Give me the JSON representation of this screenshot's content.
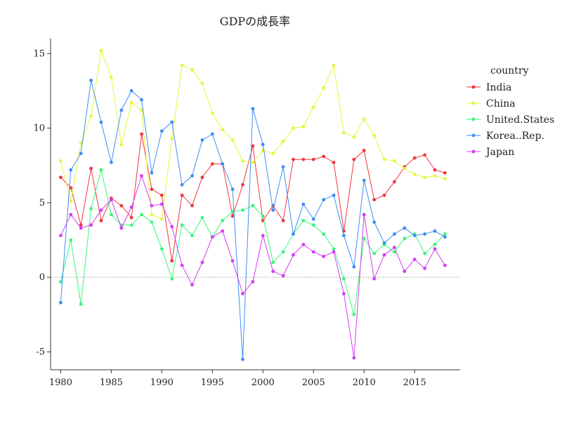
{
  "chart_data": {
    "type": "line",
    "title": "GDPの成長率",
    "xlabel": "",
    "ylabel": "",
    "xlim": [
      1979,
      2019.5
    ],
    "ylim": [
      -6.2,
      16
    ],
    "x_ticks": [
      1980,
      1985,
      1990,
      1995,
      2000,
      2005,
      2010,
      2015
    ],
    "y_ticks": [
      -5,
      0,
      5,
      10,
      15
    ],
    "y_tick_labels": [
      "-5",
      "0",
      "5",
      "10",
      "15"
    ],
    "zero_line": true,
    "grid": false,
    "legend_title": "country",
    "legend_position": "right",
    "x": [
      1980,
      1981,
      1982,
      1983,
      1984,
      1985,
      1986,
      1987,
      1988,
      1989,
      1990,
      1991,
      1992,
      1993,
      1994,
      1995,
      1996,
      1997,
      1998,
      1999,
      2000,
      2001,
      2002,
      2003,
      2004,
      2005,
      2006,
      2007,
      2008,
      2009,
      2010,
      2011,
      2012,
      2013,
      2014,
      2015,
      2016,
      2017,
      2018
    ],
    "series": [
      {
        "name": "India",
        "color": "#f0363f",
        "values": [
          6.7,
          6.0,
          3.5,
          7.3,
          3.8,
          5.3,
          4.8,
          4.0,
          9.6,
          5.9,
          5.5,
          1.1,
          5.5,
          4.8,
          6.7,
          7.6,
          7.6,
          4.1,
          6.2,
          8.8,
          3.8,
          4.8,
          3.8,
          7.9,
          7.9,
          7.9,
          8.1,
          7.7,
          3.1,
          7.9,
          8.5,
          5.2,
          5.5,
          6.4,
          7.4,
          8.0,
          8.2,
          7.2,
          7.0
        ]
      },
      {
        "name": "China",
        "color": "#e6f53c",
        "values": [
          7.8,
          5.1,
          9.0,
          10.8,
          15.2,
          13.4,
          8.9,
          11.7,
          11.2,
          4.2,
          3.9,
          9.3,
          14.2,
          13.9,
          13.0,
          11.0,
          9.9,
          9.2,
          7.8,
          7.7,
          8.5,
          8.3,
          9.1,
          10.0,
          10.1,
          11.4,
          12.7,
          14.2,
          9.7,
          9.4,
          10.6,
          9.5,
          7.9,
          7.8,
          7.3,
          6.9,
          6.7,
          6.8,
          6.6
        ]
      },
      {
        "name": "United.States",
        "color": "#3cf57c",
        "values": [
          -0.3,
          2.5,
          -1.8,
          4.6,
          7.2,
          4.2,
          3.5,
          3.5,
          4.2,
          3.7,
          1.9,
          -0.1,
          3.5,
          2.8,
          4.0,
          2.7,
          3.8,
          4.4,
          4.5,
          4.8,
          4.1,
          1.0,
          1.7,
          2.9,
          3.8,
          3.5,
          2.9,
          1.9,
          -0.1,
          -2.5,
          2.6,
          1.6,
          2.2,
          1.7,
          2.6,
          2.9,
          1.6,
          2.2,
          2.9
        ]
      },
      {
        "name": "Korea..Rep.",
        "color": "#3c8ef5",
        "values": [
          -1.7,
          7.2,
          8.3,
          13.2,
          10.4,
          7.7,
          11.2,
          12.5,
          11.9,
          7.0,
          9.8,
          10.4,
          6.2,
          6.8,
          9.2,
          9.6,
          7.6,
          5.9,
          -5.5,
          11.3,
          8.9,
          4.5,
          7.4,
          2.9,
          4.9,
          3.9,
          5.2,
          5.5,
          2.8,
          0.7,
          6.5,
          3.7,
          2.3,
          2.9,
          3.3,
          2.8,
          2.9,
          3.1,
          2.7
        ]
      },
      {
        "name": "Japan",
        "color": "#d23cf5",
        "values": [
          2.8,
          4.2,
          3.3,
          3.5,
          4.5,
          5.2,
          3.3,
          4.7,
          6.8,
          4.8,
          4.9,
          3.4,
          0.8,
          -0.5,
          1.0,
          2.7,
          3.1,
          1.1,
          -1.1,
          -0.3,
          2.8,
          0.4,
          0.1,
          1.5,
          2.2,
          1.7,
          1.4,
          1.7,
          -1.1,
          -5.4,
          4.2,
          -0.1,
          1.5,
          2.0,
          0.4,
          1.2,
          0.6,
          1.9,
          0.8
        ]
      }
    ]
  }
}
